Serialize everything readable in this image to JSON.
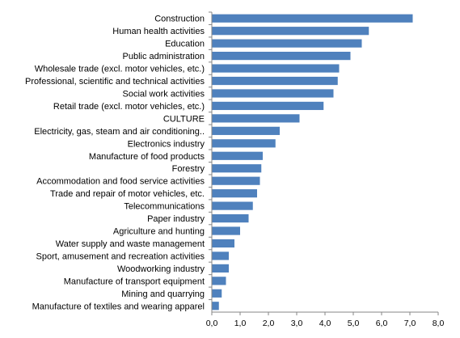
{
  "chart_data": {
    "type": "bar",
    "orientation": "horizontal",
    "categories": [
      "Construction",
      "Human health activities",
      "Education",
      "Public administration",
      "Wholesale trade (excl. motor vehicles, etc.)",
      "Professional, scientific and technical activities",
      "Social work activities",
      "Retail trade (excl. motor vehicles, etc.)",
      "CULTURE",
      "Electricity, gas, steam and air conditioning..",
      "Electronics industry",
      "Manufacture of food products",
      "Forestry",
      "Accommodation and food service activities",
      "Trade and repair of motor vehicles, etc.",
      "Telecommunications",
      "Paper industry",
      "Agriculture and hunting",
      "Water supply and waste management",
      "Sport, amusement and recreation activities",
      "Woodworking industry",
      "Manufacture of transport equipment",
      "Mining and quarrying",
      "Manufacture of textiles and wearing apparel"
    ],
    "values": [
      7.1,
      5.55,
      5.3,
      4.9,
      4.5,
      4.45,
      4.3,
      3.95,
      3.1,
      2.4,
      2.25,
      1.8,
      1.75,
      1.7,
      1.6,
      1.45,
      1.3,
      1.0,
      0.8,
      0.6,
      0.6,
      0.5,
      0.35,
      0.25
    ],
    "xlim": [
      0,
      8
    ],
    "xticks": [
      "0,0",
      "1,0",
      "2,0",
      "3,0",
      "4,0",
      "5,0",
      "6,0",
      "7,0",
      "8,0"
    ],
    "title": "",
    "xlabel": "",
    "ylabel": "",
    "grid": false,
    "bar_color": "#4f81bd"
  }
}
